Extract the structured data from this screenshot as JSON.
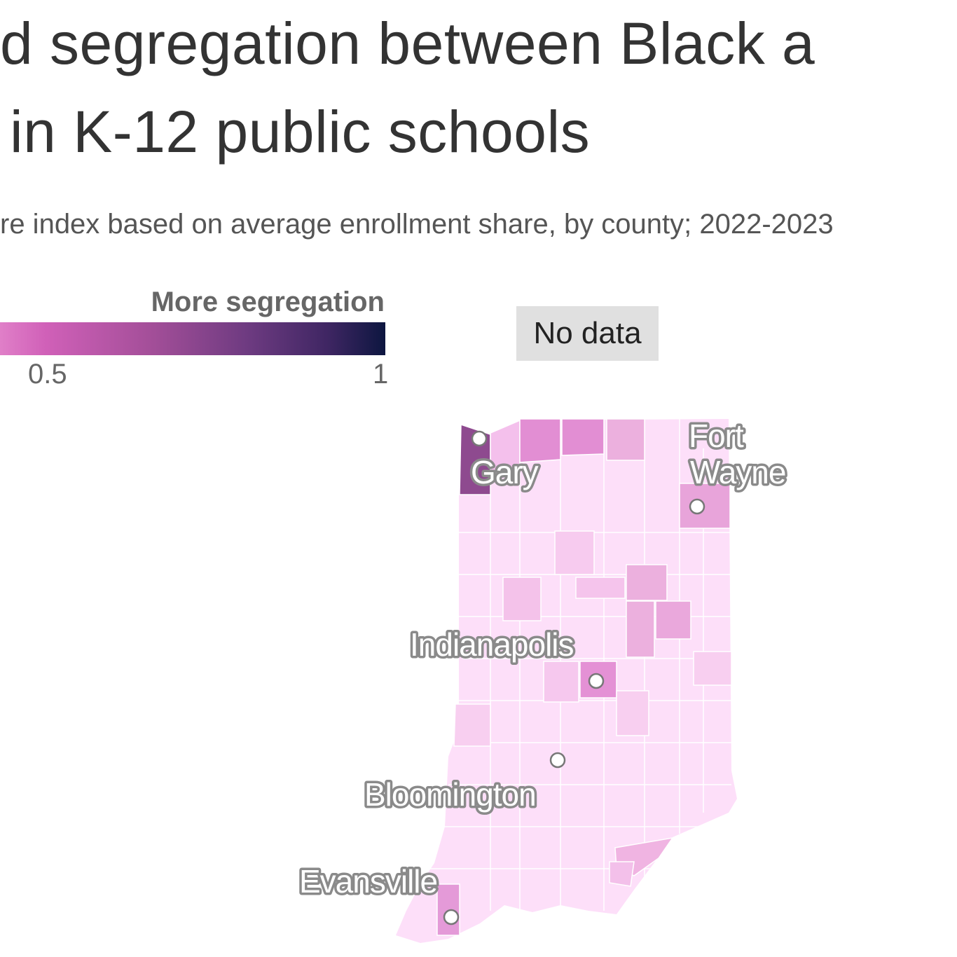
{
  "header": {
    "title_line1": "d segregation between Black a",
    "title_line2": "in K-12 public schools",
    "subtitle": "re index based on average enrollment share, by county; 2022-2023"
  },
  "legend": {
    "title": "More segregation",
    "ticks": [
      "0.5",
      "1"
    ],
    "no_data_label": "No data",
    "colors": {
      "low": "#e07fc8",
      "mid": "#a24e98",
      "high": "#0d1640",
      "no_data": "#e0e0e0",
      "base": "#fddff9"
    }
  },
  "map": {
    "cities": [
      {
        "name": "Gary"
      },
      {
        "name_line1": "Fort",
        "name_line2": "Wayne"
      },
      {
        "name": "Indianapolis"
      },
      {
        "name": "Bloomington"
      },
      {
        "name": "Evansville"
      }
    ]
  }
}
